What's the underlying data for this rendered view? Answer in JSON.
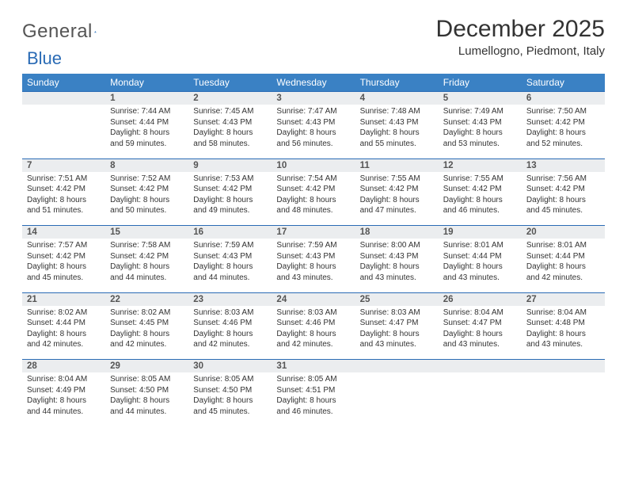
{
  "logo": {
    "word1": "General",
    "word2": "Blue"
  },
  "title": "December 2025",
  "location": "Lumellogno, Piedmont, Italy",
  "colors": {
    "header_bg": "#3a81c4",
    "header_fg": "#ffffff",
    "daynum_bg": "#ebedef",
    "daynum_border": "#2a6bb5",
    "text": "#333333",
    "logo_gray": "#555555",
    "logo_blue": "#2a6bb5",
    "page_bg": "#ffffff"
  },
  "weekdays": [
    "Sunday",
    "Monday",
    "Tuesday",
    "Wednesday",
    "Thursday",
    "Friday",
    "Saturday"
  ],
  "weeks": [
    [
      {
        "n": "",
        "sunrise": "",
        "sunset": "",
        "daylight": ""
      },
      {
        "n": "1",
        "sunrise": "7:44 AM",
        "sunset": "4:44 PM",
        "daylight": "8 hours and 59 minutes."
      },
      {
        "n": "2",
        "sunrise": "7:45 AM",
        "sunset": "4:43 PM",
        "daylight": "8 hours and 58 minutes."
      },
      {
        "n": "3",
        "sunrise": "7:47 AM",
        "sunset": "4:43 PM",
        "daylight": "8 hours and 56 minutes."
      },
      {
        "n": "4",
        "sunrise": "7:48 AM",
        "sunset": "4:43 PM",
        "daylight": "8 hours and 55 minutes."
      },
      {
        "n": "5",
        "sunrise": "7:49 AM",
        "sunset": "4:43 PM",
        "daylight": "8 hours and 53 minutes."
      },
      {
        "n": "6",
        "sunrise": "7:50 AM",
        "sunset": "4:42 PM",
        "daylight": "8 hours and 52 minutes."
      }
    ],
    [
      {
        "n": "7",
        "sunrise": "7:51 AM",
        "sunset": "4:42 PM",
        "daylight": "8 hours and 51 minutes."
      },
      {
        "n": "8",
        "sunrise": "7:52 AM",
        "sunset": "4:42 PM",
        "daylight": "8 hours and 50 minutes."
      },
      {
        "n": "9",
        "sunrise": "7:53 AM",
        "sunset": "4:42 PM",
        "daylight": "8 hours and 49 minutes."
      },
      {
        "n": "10",
        "sunrise": "7:54 AM",
        "sunset": "4:42 PM",
        "daylight": "8 hours and 48 minutes."
      },
      {
        "n": "11",
        "sunrise": "7:55 AM",
        "sunset": "4:42 PM",
        "daylight": "8 hours and 47 minutes."
      },
      {
        "n": "12",
        "sunrise": "7:55 AM",
        "sunset": "4:42 PM",
        "daylight": "8 hours and 46 minutes."
      },
      {
        "n": "13",
        "sunrise": "7:56 AM",
        "sunset": "4:42 PM",
        "daylight": "8 hours and 45 minutes."
      }
    ],
    [
      {
        "n": "14",
        "sunrise": "7:57 AM",
        "sunset": "4:42 PM",
        "daylight": "8 hours and 45 minutes."
      },
      {
        "n": "15",
        "sunrise": "7:58 AM",
        "sunset": "4:42 PM",
        "daylight": "8 hours and 44 minutes."
      },
      {
        "n": "16",
        "sunrise": "7:59 AM",
        "sunset": "4:43 PM",
        "daylight": "8 hours and 44 minutes."
      },
      {
        "n": "17",
        "sunrise": "7:59 AM",
        "sunset": "4:43 PM",
        "daylight": "8 hours and 43 minutes."
      },
      {
        "n": "18",
        "sunrise": "8:00 AM",
        "sunset": "4:43 PM",
        "daylight": "8 hours and 43 minutes."
      },
      {
        "n": "19",
        "sunrise": "8:01 AM",
        "sunset": "4:44 PM",
        "daylight": "8 hours and 43 minutes."
      },
      {
        "n": "20",
        "sunrise": "8:01 AM",
        "sunset": "4:44 PM",
        "daylight": "8 hours and 42 minutes."
      }
    ],
    [
      {
        "n": "21",
        "sunrise": "8:02 AM",
        "sunset": "4:44 PM",
        "daylight": "8 hours and 42 minutes."
      },
      {
        "n": "22",
        "sunrise": "8:02 AM",
        "sunset": "4:45 PM",
        "daylight": "8 hours and 42 minutes."
      },
      {
        "n": "23",
        "sunrise": "8:03 AM",
        "sunset": "4:46 PM",
        "daylight": "8 hours and 42 minutes."
      },
      {
        "n": "24",
        "sunrise": "8:03 AM",
        "sunset": "4:46 PM",
        "daylight": "8 hours and 42 minutes."
      },
      {
        "n": "25",
        "sunrise": "8:03 AM",
        "sunset": "4:47 PM",
        "daylight": "8 hours and 43 minutes."
      },
      {
        "n": "26",
        "sunrise": "8:04 AM",
        "sunset": "4:47 PM",
        "daylight": "8 hours and 43 minutes."
      },
      {
        "n": "27",
        "sunrise": "8:04 AM",
        "sunset": "4:48 PM",
        "daylight": "8 hours and 43 minutes."
      }
    ],
    [
      {
        "n": "28",
        "sunrise": "8:04 AM",
        "sunset": "4:49 PM",
        "daylight": "8 hours and 44 minutes."
      },
      {
        "n": "29",
        "sunrise": "8:05 AM",
        "sunset": "4:50 PM",
        "daylight": "8 hours and 44 minutes."
      },
      {
        "n": "30",
        "sunrise": "8:05 AM",
        "sunset": "4:50 PM",
        "daylight": "8 hours and 45 minutes."
      },
      {
        "n": "31",
        "sunrise": "8:05 AM",
        "sunset": "4:51 PM",
        "daylight": "8 hours and 46 minutes."
      },
      {
        "n": "",
        "sunrise": "",
        "sunset": "",
        "daylight": ""
      },
      {
        "n": "",
        "sunrise": "",
        "sunset": "",
        "daylight": ""
      },
      {
        "n": "",
        "sunrise": "",
        "sunset": "",
        "daylight": ""
      }
    ]
  ],
  "labels": {
    "sunrise": "Sunrise:",
    "sunset": "Sunset:",
    "daylight": "Daylight:"
  }
}
